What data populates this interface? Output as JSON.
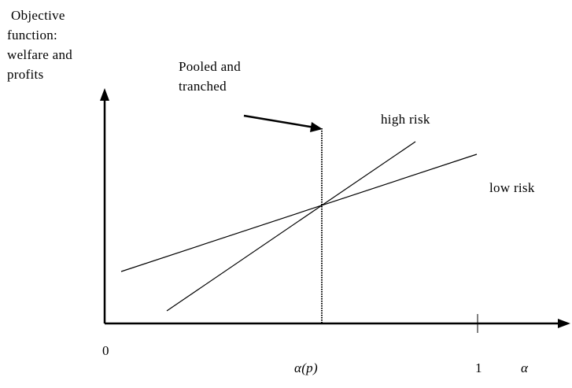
{
  "y_axis_label": [
    "Objective",
    "function:",
    "welfare and",
    "profits"
  ],
  "annotation": [
    "Pooled and",
    "tranched"
  ],
  "lines": {
    "high": "high risk",
    "low": "low risk"
  },
  "x_ticks": {
    "origin": "0",
    "alpha_p": "α(p)",
    "one": "1",
    "axis_symbol": "α"
  }
}
